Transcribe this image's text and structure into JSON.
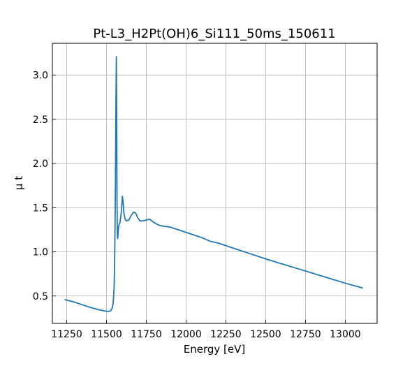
{
  "chart_data": {
    "type": "line",
    "title": "Pt-L3_H2Pt(OH)6_Si111_50ms_150611",
    "xlabel": "Energy [eV]",
    "ylabel": "μ t",
    "xlim": [
      11160,
      13200
    ],
    "ylim": [
      0.19,
      3.36
    ],
    "grid": true,
    "x_ticks": [
      11250,
      11500,
      11750,
      12000,
      12250,
      12500,
      12750,
      13000
    ],
    "y_ticks": [
      0.5,
      1.0,
      1.5,
      2.0,
      2.5,
      3.0
    ],
    "x_tick_labels": [
      "11250",
      "11500",
      "11750",
      "12000",
      "12250",
      "12500",
      "12750",
      "13000"
    ],
    "y_tick_labels": [
      "0.5",
      "1.0",
      "1.5",
      "2.0",
      "2.5",
      "3.0"
    ],
    "series": [
      {
        "color": "#1f77b4",
        "x": [
          11237,
          11300,
          11350,
          11400,
          11450,
          11490,
          11510,
          11525,
          11535,
          11542,
          11548,
          11552,
          11556,
          11559,
          11562,
          11564,
          11566,
          11568,
          11570,
          11572,
          11575,
          11579,
          11585,
          11593,
          11600,
          11605,
          11610,
          11617,
          11625,
          11640,
          11655,
          11670,
          11683,
          11695,
          11710,
          11730,
          11750,
          11770,
          11785,
          11800,
          11830,
          11860,
          11900,
          11950,
          12000,
          12050,
          12100,
          12150,
          12200,
          12300,
          12400,
          12500,
          12600,
          12700,
          12800,
          12900,
          13000,
          13110
        ],
        "y": [
          0.46,
          0.43,
          0.4,
          0.37,
          0.345,
          0.33,
          0.325,
          0.33,
          0.36,
          0.42,
          0.6,
          1.0,
          1.7,
          2.6,
          3.21,
          2.6,
          1.6,
          1.22,
          1.15,
          1.18,
          1.27,
          1.31,
          1.33,
          1.45,
          1.63,
          1.55,
          1.43,
          1.37,
          1.35,
          1.36,
          1.41,
          1.45,
          1.44,
          1.39,
          1.35,
          1.35,
          1.36,
          1.37,
          1.35,
          1.33,
          1.3,
          1.29,
          1.28,
          1.25,
          1.22,
          1.19,
          1.16,
          1.12,
          1.1,
          1.04,
          0.98,
          0.92,
          0.865,
          0.81,
          0.755,
          0.7,
          0.645,
          0.59
        ]
      }
    ]
  }
}
